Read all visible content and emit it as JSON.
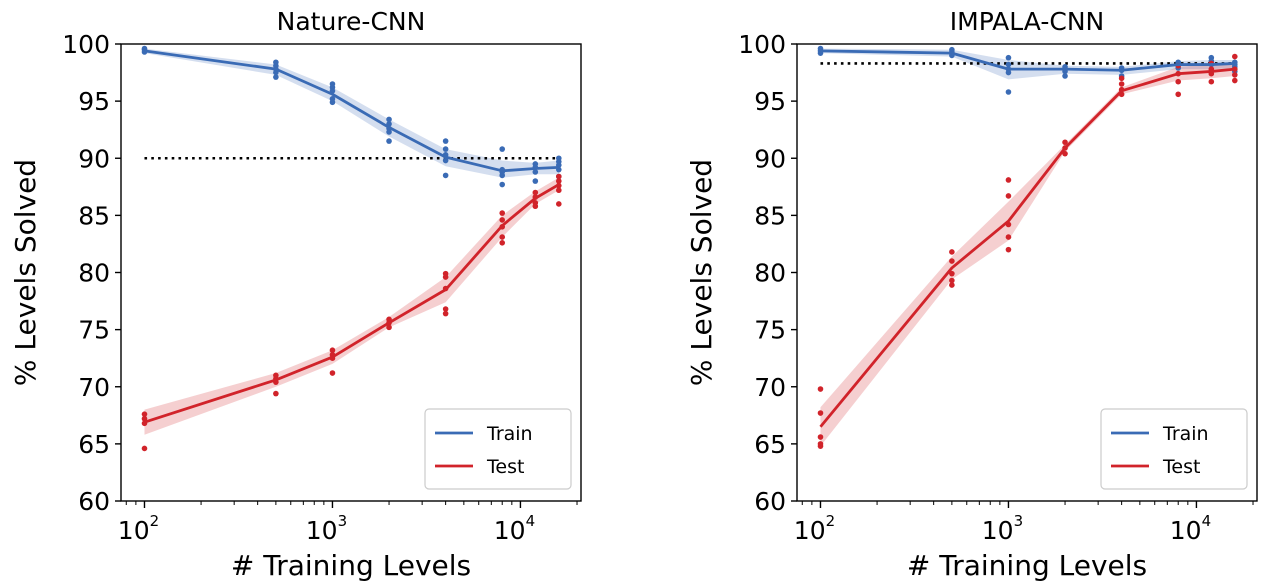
{
  "chart_data": [
    {
      "type": "line",
      "title": "Nature-CNN",
      "xlabel": "# Training Levels",
      "ylabel": "% Levels Solved",
      "xscale": "log",
      "xlim": [
        75,
        21000
      ],
      "ylim": [
        60,
        100
      ],
      "yticks": [
        60,
        65,
        70,
        75,
        80,
        85,
        90,
        95,
        100
      ],
      "xticks": [
        {
          "base": "10",
          "exp": "2",
          "value": 100
        },
        {
          "base": "10",
          "exp": "3",
          "value": 1000
        },
        {
          "base": "10",
          "exp": "4",
          "value": 10000
        }
      ],
      "grid": false,
      "legend": "bottom-right",
      "reference_line": 90,
      "x": [
        100,
        500,
        1000,
        2000,
        4000,
        8000,
        12000,
        16000
      ],
      "series": [
        {
          "name": "Train",
          "color": "#3a6bb5",
          "mean": [
            99.4,
            97.8,
            95.6,
            92.7,
            90.1,
            88.9,
            89.1,
            89.2
          ],
          "lower": [
            99.2,
            97.3,
            95.0,
            91.9,
            89.3,
            88.3,
            88.6,
            88.6
          ],
          "upper": [
            99.6,
            98.2,
            96.2,
            93.4,
            90.8,
            89.8,
            89.6,
            89.8
          ],
          "points": [
            [
              100,
              99.6
            ],
            [
              100,
              99.5
            ],
            [
              100,
              99.3
            ],
            [
              500,
              98.4
            ],
            [
              500,
              98.1
            ],
            [
              500,
              97.8
            ],
            [
              500,
              97.5
            ],
            [
              500,
              97.1
            ],
            [
              1000,
              96.5
            ],
            [
              1000,
              96.2
            ],
            [
              1000,
              95.9
            ],
            [
              1000,
              95.2
            ],
            [
              1000,
              94.9
            ],
            [
              2000,
              93.4
            ],
            [
              2000,
              93.0
            ],
            [
              2000,
              92.6
            ],
            [
              2000,
              92.3
            ],
            [
              2000,
              91.5
            ],
            [
              4000,
              91.5
            ],
            [
              4000,
              90.8
            ],
            [
              4000,
              90.3
            ],
            [
              4000,
              89.8
            ],
            [
              4000,
              88.5
            ],
            [
              8000,
              90.8
            ],
            [
              8000,
              89.0
            ],
            [
              8000,
              88.8
            ],
            [
              8000,
              88.5
            ],
            [
              8000,
              87.7
            ],
            [
              12000,
              89.5
            ],
            [
              12000,
              89.2
            ],
            [
              12000,
              88.8
            ],
            [
              12000,
              88.0
            ],
            [
              16000,
              90.0
            ],
            [
              16000,
              89.7
            ],
            [
              16000,
              89.4
            ],
            [
              16000,
              89.0
            ],
            [
              16000,
              88.4
            ]
          ]
        },
        {
          "name": "Test",
          "color": "#d1232a",
          "mean": [
            66.9,
            70.6,
            72.6,
            75.6,
            78.5,
            84.1,
            86.5,
            87.7
          ],
          "lower": [
            65.8,
            70.0,
            72.0,
            75.2,
            77.4,
            83.1,
            86.0,
            87.2
          ],
          "upper": [
            68.0,
            71.2,
            73.2,
            76.1,
            79.6,
            85.0,
            87.1,
            88.3
          ],
          "points": [
            [
              100,
              67.6
            ],
            [
              100,
              67.2
            ],
            [
              100,
              66.8
            ],
            [
              100,
              64.6
            ],
            [
              500,
              71.0
            ],
            [
              500,
              70.7
            ],
            [
              500,
              70.4
            ],
            [
              500,
              69.4
            ],
            [
              1000,
              73.2
            ],
            [
              1000,
              72.8
            ],
            [
              1000,
              72.5
            ],
            [
              1000,
              71.2
            ],
            [
              2000,
              75.9
            ],
            [
              2000,
              75.6
            ],
            [
              2000,
              75.2
            ],
            [
              4000,
              79.9
            ],
            [
              4000,
              79.6
            ],
            [
              4000,
              78.6
            ],
            [
              4000,
              76.8
            ],
            [
              4000,
              76.4
            ],
            [
              8000,
              85.2
            ],
            [
              8000,
              84.6
            ],
            [
              8000,
              84.0
            ],
            [
              8000,
              83.1
            ],
            [
              8000,
              82.6
            ],
            [
              12000,
              87.0
            ],
            [
              12000,
              86.6
            ],
            [
              12000,
              86.1
            ],
            [
              12000,
              85.8
            ],
            [
              16000,
              88.4
            ],
            [
              16000,
              88.0
            ],
            [
              16000,
              87.6
            ],
            [
              16000,
              87.2
            ],
            [
              16000,
              86.0
            ]
          ]
        }
      ]
    },
    {
      "type": "line",
      "title": "IMPALA-CNN",
      "xlabel": "# Training Levels",
      "ylabel": "% Levels Solved",
      "xscale": "log",
      "xlim": [
        75,
        21000
      ],
      "ylim": [
        60,
        100
      ],
      "yticks": [
        60,
        65,
        70,
        75,
        80,
        85,
        90,
        95,
        100
      ],
      "xticks": [
        {
          "base": "10",
          "exp": "2",
          "value": 100
        },
        {
          "base": "10",
          "exp": "3",
          "value": 1000
        },
        {
          "base": "10",
          "exp": "4",
          "value": 10000
        }
      ],
      "grid": false,
      "legend": "bottom-right",
      "reference_line": 98.3,
      "x": [
        100,
        500,
        1000,
        2000,
        4000,
        8000,
        12000,
        16000
      ],
      "series": [
        {
          "name": "Train",
          "color": "#3a6bb5",
          "mean": [
            99.4,
            99.2,
            97.8,
            97.8,
            97.7,
            98.2,
            98.2,
            98.3
          ],
          "lower": [
            99.2,
            98.9,
            96.9,
            97.4,
            97.3,
            97.8,
            97.8,
            97.9
          ],
          "upper": [
            99.6,
            99.5,
            98.6,
            98.1,
            98.0,
            98.5,
            98.6,
            98.6
          ],
          "points": [
            [
              100,
              99.6
            ],
            [
              100,
              99.4
            ],
            [
              100,
              99.2
            ],
            [
              500,
              99.5
            ],
            [
              500,
              99.3
            ],
            [
              500,
              99.0
            ],
            [
              1000,
              98.8
            ],
            [
              1000,
              98.2
            ],
            [
              1000,
              97.8
            ],
            [
              1000,
              97.5
            ],
            [
              1000,
              95.8
            ],
            [
              2000,
              98.0
            ],
            [
              2000,
              97.8
            ],
            [
              2000,
              97.6
            ],
            [
              2000,
              97.2
            ],
            [
              4000,
              97.9
            ],
            [
              4000,
              97.7
            ],
            [
              4000,
              97.2
            ],
            [
              8000,
              98.4
            ],
            [
              8000,
              98.2
            ],
            [
              8000,
              97.9
            ],
            [
              12000,
              98.8
            ],
            [
              12000,
              98.5
            ],
            [
              12000,
              98.2
            ],
            [
              12000,
              97.6
            ],
            [
              16000,
              98.4
            ],
            [
              16000,
              98.2
            ],
            [
              16000,
              98.0
            ],
            [
              16000,
              97.6
            ]
          ]
        },
        {
          "name": "Test",
          "color": "#d1232a",
          "mean": [
            66.5,
            80.4,
            84.5,
            90.9,
            95.9,
            97.4,
            97.6,
            97.8
          ],
          "lower": [
            64.8,
            79.4,
            82.8,
            90.6,
            95.6,
            96.8,
            97.0,
            97.2
          ],
          "upper": [
            68.2,
            81.4,
            86.2,
            91.2,
            96.2,
            98.0,
            98.2,
            98.4
          ],
          "points": [
            [
              100,
              69.8
            ],
            [
              100,
              67.7
            ],
            [
              100,
              65.6
            ],
            [
              100,
              65.0
            ],
            [
              100,
              64.8
            ],
            [
              500,
              81.8
            ],
            [
              500,
              81.0
            ],
            [
              500,
              79.9
            ],
            [
              500,
              79.3
            ],
            [
              500,
              78.9
            ],
            [
              1000,
              88.1
            ],
            [
              1000,
              86.7
            ],
            [
              1000,
              84.2
            ],
            [
              1000,
              83.1
            ],
            [
              1000,
              82.0
            ],
            [
              2000,
              91.4
            ],
            [
              2000,
              90.9
            ],
            [
              2000,
              90.4
            ],
            [
              4000,
              96.5
            ],
            [
              4000,
              96.0
            ],
            [
              4000,
              95.6
            ],
            [
              4000,
              97.0
            ],
            [
              8000,
              98.1
            ],
            [
              8000,
              97.4
            ],
            [
              8000,
              96.7
            ],
            [
              8000,
              95.6
            ],
            [
              12000,
              98.3
            ],
            [
              12000,
              97.8
            ],
            [
              12000,
              97.4
            ],
            [
              12000,
              96.7
            ],
            [
              16000,
              98.9
            ],
            [
              16000,
              97.8
            ],
            [
              16000,
              97.3
            ],
            [
              16000,
              96.8
            ]
          ]
        }
      ]
    }
  ]
}
